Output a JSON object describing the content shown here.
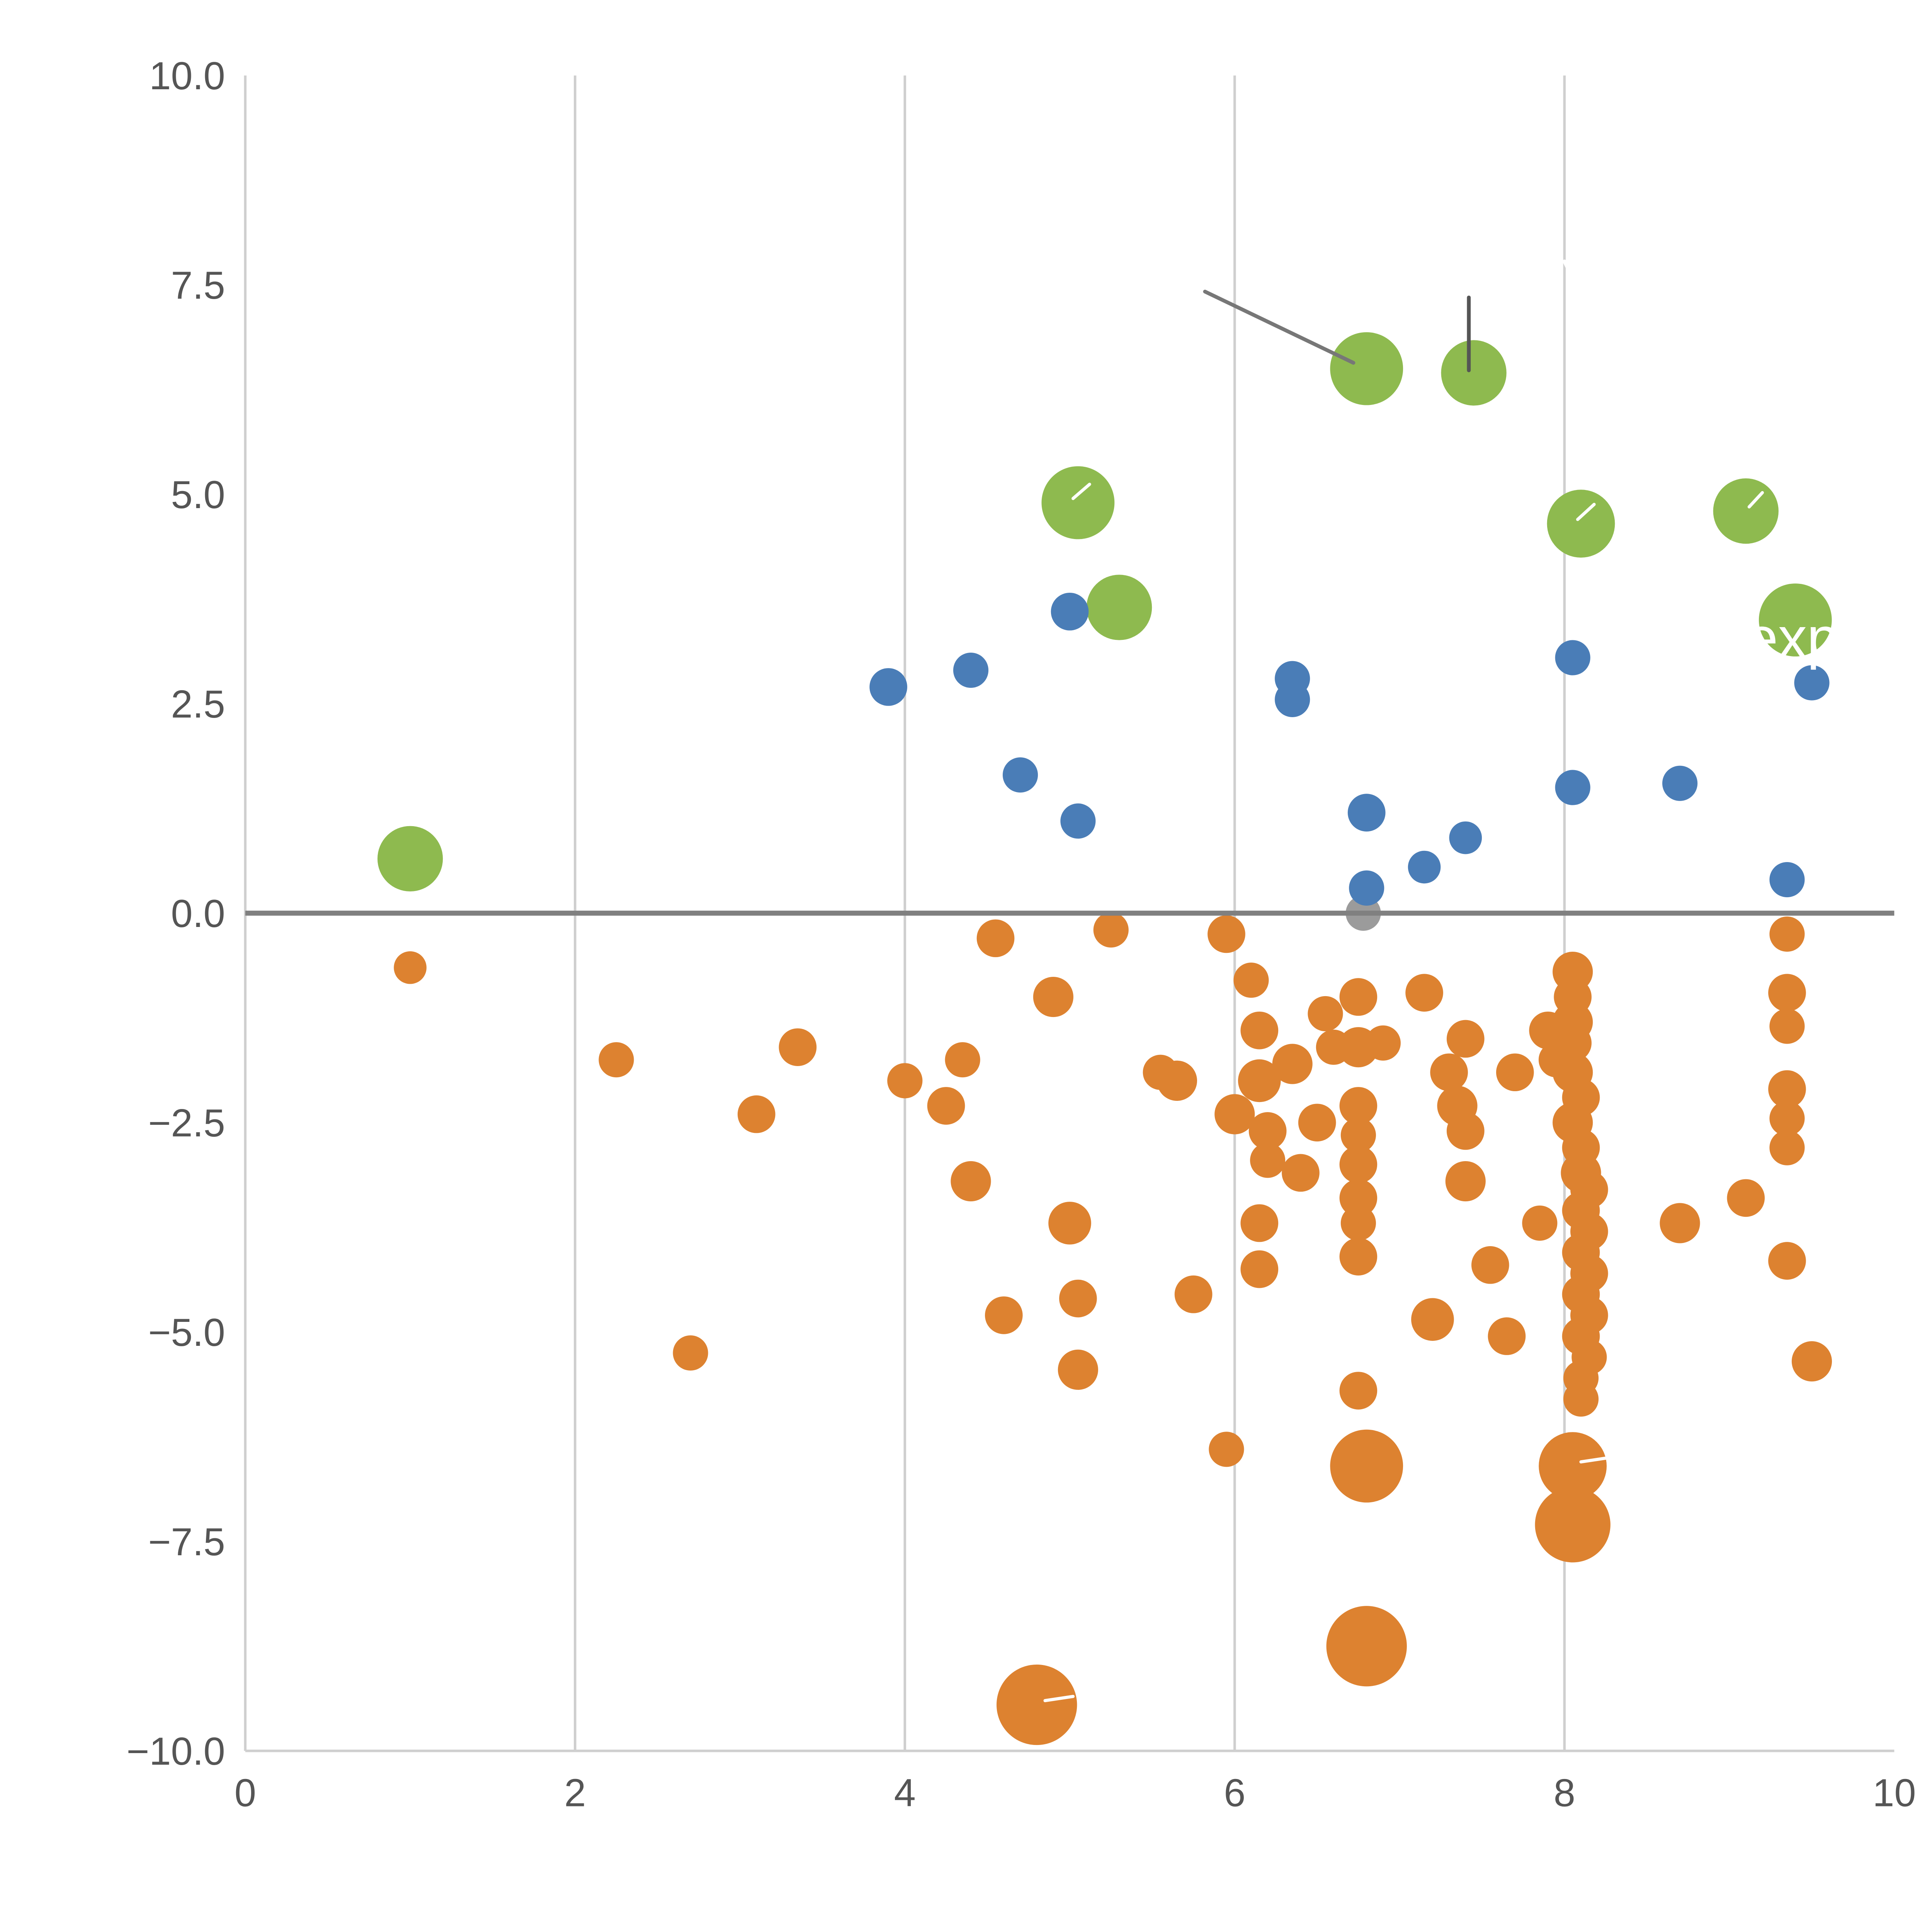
{
  "chart_data": {
    "type": "scatter",
    "title": "",
    "xlabel": "",
    "ylabel": "",
    "xlim": [
      0,
      10
    ],
    "ylim": [
      -10,
      10
    ],
    "grid_x": [
      2,
      4,
      6,
      8
    ],
    "zero_line_y": 0,
    "x_ticks": [
      0,
      2,
      4,
      6,
      8,
      10
    ],
    "x_tick_labels": [
      "0",
      "2",
      "4",
      "6",
      "8",
      "10"
    ],
    "y_ticks": [
      10.0,
      7.5,
      5.0,
      2.5,
      0.0,
      -2.5,
      -5.0,
      -7.5,
      -10.0
    ],
    "y_tick_labels": [
      "10.0",
      "7.5",
      "5.0",
      "2.5",
      "0.0",
      "−2.5",
      "−5.0",
      "−7.5",
      "−10.0"
    ],
    "colors": {
      "grid": "#cfcfcf",
      "spine": "#cfcfcf",
      "zero_line": "#808080",
      "tick_text": "#555555",
      "green": "#8eba4f",
      "blue": "#4a7db7",
      "orange": "#dd8230",
      "gray_point": "#9b9b9b"
    },
    "legend": null,
    "series": [
      {
        "name": "green-large-bubbles",
        "color": "#8eba4f",
        "points": [
          [
            6.8,
            6.5,
            29
          ],
          [
            7.45,
            6.45,
            26
          ],
          [
            5.05,
            4.9,
            29
          ],
          [
            5.3,
            3.65,
            26
          ],
          [
            8.1,
            4.65,
            27
          ],
          [
            9.1,
            4.8,
            26
          ],
          [
            9.4,
            3.5,
            29
          ],
          [
            1.0,
            0.65,
            26
          ]
        ]
      },
      {
        "name": "gray-point",
        "color": "#9b9b9b",
        "points": [
          [
            6.78,
            0.0,
            14
          ]
        ]
      },
      {
        "name": "blue-points",
        "color": "#4a7db7",
        "points": [
          [
            3.9,
            2.7,
            15
          ],
          [
            4.4,
            2.9,
            14
          ],
          [
            5.0,
            3.6,
            15
          ],
          [
            4.7,
            1.65,
            14
          ],
          [
            5.05,
            1.1,
            14
          ],
          [
            6.35,
            2.8,
            14
          ],
          [
            6.35,
            2.55,
            14
          ],
          [
            6.8,
            1.2,
            15
          ],
          [
            6.8,
            0.3,
            14
          ],
          [
            7.15,
            0.55,
            13
          ],
          [
            7.4,
            0.9,
            13
          ],
          [
            8.05,
            3.05,
            14
          ],
          [
            8.05,
            1.5,
            14
          ],
          [
            8.7,
            1.55,
            14
          ],
          [
            9.5,
            2.75,
            14
          ],
          [
            9.35,
            0.4,
            14
          ]
        ]
      },
      {
        "name": "orange-points",
        "color": "#dd8230",
        "points": [
          [
            1.0,
            -0.65,
            13
          ],
          [
            2.25,
            -1.75,
            14
          ],
          [
            2.7,
            -5.25,
            14
          ],
          [
            3.1,
            -2.4,
            15
          ],
          [
            3.35,
            -1.6,
            15
          ],
          [
            4.0,
            -2.0,
            14
          ],
          [
            4.25,
            -2.3,
            15
          ],
          [
            4.35,
            -1.75,
            14
          ],
          [
            4.4,
            -3.2,
            16
          ],
          [
            4.55,
            -0.3,
            15
          ],
          [
            4.6,
            -4.8,
            15
          ],
          [
            4.9,
            -1.0,
            16
          ],
          [
            5.0,
            -3.7,
            17
          ],
          [
            5.05,
            -4.6,
            15
          ],
          [
            5.05,
            -5.45,
            16
          ],
          [
            4.8,
            -9.45,
            32
          ],
          [
            5.25,
            -0.2,
            14
          ],
          [
            5.55,
            -1.9,
            14
          ],
          [
            5.65,
            -2.0,
            16
          ],
          [
            5.75,
            -4.55,
            15
          ],
          [
            5.95,
            -0.25,
            15
          ],
          [
            6.0,
            -2.4,
            16
          ],
          [
            5.95,
            -6.4,
            14
          ],
          [
            6.1,
            -0.8,
            14
          ],
          [
            6.15,
            -1.4,
            15
          ],
          [
            6.15,
            -2.0,
            17
          ],
          [
            6.2,
            -2.6,
            15
          ],
          [
            6.2,
            -2.95,
            14
          ],
          [
            6.15,
            -3.7,
            15
          ],
          [
            6.15,
            -4.25,
            15
          ],
          [
            6.35,
            -1.8,
            16
          ],
          [
            6.4,
            -3.1,
            15
          ],
          [
            6.5,
            -2.5,
            15
          ],
          [
            6.55,
            -1.2,
            14
          ],
          [
            6.6,
            -1.6,
            14
          ],
          [
            6.75,
            -1.0,
            15
          ],
          [
            6.75,
            -1.6,
            16
          ],
          [
            6.75,
            -2.3,
            15
          ],
          [
            6.75,
            -2.65,
            14
          ],
          [
            6.75,
            -3.0,
            15
          ],
          [
            6.75,
            -3.4,
            15
          ],
          [
            6.75,
            -3.7,
            14
          ],
          [
            6.75,
            -4.1,
            15
          ],
          [
            6.75,
            -5.7,
            15
          ],
          [
            6.8,
            -6.6,
            29
          ],
          [
            6.8,
            -8.75,
            32
          ],
          [
            6.9,
            -1.55,
            14
          ],
          [
            7.15,
            -0.95,
            15
          ],
          [
            7.2,
            -4.85,
            17
          ],
          [
            7.3,
            -1.9,
            15
          ],
          [
            7.35,
            -2.3,
            16
          ],
          [
            7.4,
            -1.5,
            15
          ],
          [
            7.4,
            -2.6,
            15
          ],
          [
            7.4,
            -3.2,
            16
          ],
          [
            7.55,
            -4.2,
            15
          ],
          [
            7.65,
            -5.05,
            15
          ],
          [
            7.7,
            -1.9,
            15
          ],
          [
            7.85,
            -3.7,
            14
          ],
          [
            7.9,
            -1.4,
            15
          ],
          [
            7.95,
            -1.75,
            14
          ],
          [
            8.05,
            -0.7,
            16
          ],
          [
            8.05,
            -1.0,
            15
          ],
          [
            8.05,
            -1.3,
            16
          ],
          [
            8.05,
            -1.55,
            15
          ],
          [
            8.05,
            -1.9,
            16
          ],
          [
            8.1,
            -2.2,
            15
          ],
          [
            8.05,
            -2.5,
            16
          ],
          [
            8.1,
            -2.8,
            15
          ],
          [
            8.1,
            -3.1,
            16
          ],
          [
            8.15,
            -3.3,
            15
          ],
          [
            8.1,
            -3.55,
            15
          ],
          [
            8.15,
            -3.8,
            15
          ],
          [
            8.1,
            -4.05,
            15
          ],
          [
            8.15,
            -4.3,
            15
          ],
          [
            8.1,
            -4.55,
            15
          ],
          [
            8.15,
            -4.8,
            15
          ],
          [
            8.1,
            -5.05,
            15
          ],
          [
            8.15,
            -5.3,
            14
          ],
          [
            8.1,
            -5.55,
            14
          ],
          [
            8.1,
            -5.8,
            14
          ],
          [
            8.05,
            -6.6,
            27
          ],
          [
            8.05,
            -7.3,
            30
          ],
          [
            8.7,
            -3.7,
            16
          ],
          [
            9.1,
            -3.4,
            15
          ],
          [
            9.35,
            -0.25,
            14
          ],
          [
            9.35,
            -0.95,
            15
          ],
          [
            9.35,
            -1.35,
            14
          ],
          [
            9.35,
            -2.1,
            15
          ],
          [
            9.35,
            -2.45,
            14
          ],
          [
            9.35,
            -2.8,
            14
          ],
          [
            9.35,
            -4.15,
            15
          ],
          [
            9.5,
            -5.35,
            16
          ]
        ]
      }
    ],
    "annotations": {
      "lines": [
        {
          "x1": 5.82,
          "y1": 7.42,
          "x2": 6.72,
          "y2": 6.57,
          "color": "#777777",
          "width": 3
        },
        {
          "x1": 7.42,
          "y1": 7.35,
          "x2": 7.42,
          "y2": 6.48,
          "color": "#555555",
          "width": 3
        },
        {
          "x1": 5.02,
          "y1": 4.95,
          "x2": 5.12,
          "y2": 5.12,
          "color": "#ffffff",
          "width": 2.5
        },
        {
          "x1": 8.08,
          "y1": 4.7,
          "x2": 8.18,
          "y2": 4.88,
          "color": "#ffffff",
          "width": 2.5
        },
        {
          "x1": 9.12,
          "y1": 4.85,
          "x2": 9.2,
          "y2": 5.02,
          "color": "#ffffff",
          "width": 2.5
        },
        {
          "x1": 4.85,
          "y1": -9.4,
          "x2": 5.02,
          "y2": -9.35,
          "color": "#ffffff",
          "width": 2.5
        },
        {
          "x1": 8.1,
          "y1": -6.55,
          "x2": 8.27,
          "y2": -6.5,
          "color": "#ffffff",
          "width": 2.5
        },
        {
          "x1": 8.0,
          "y1": 7.78,
          "x2": 8.06,
          "y2": 7.55,
          "color": "#ffffff",
          "width": 3
        }
      ],
      "texts": [
        {
          "x": 9.1,
          "y": 3.05,
          "text": "exp",
          "color": "#ffffff",
          "size": 46
        }
      ]
    }
  }
}
